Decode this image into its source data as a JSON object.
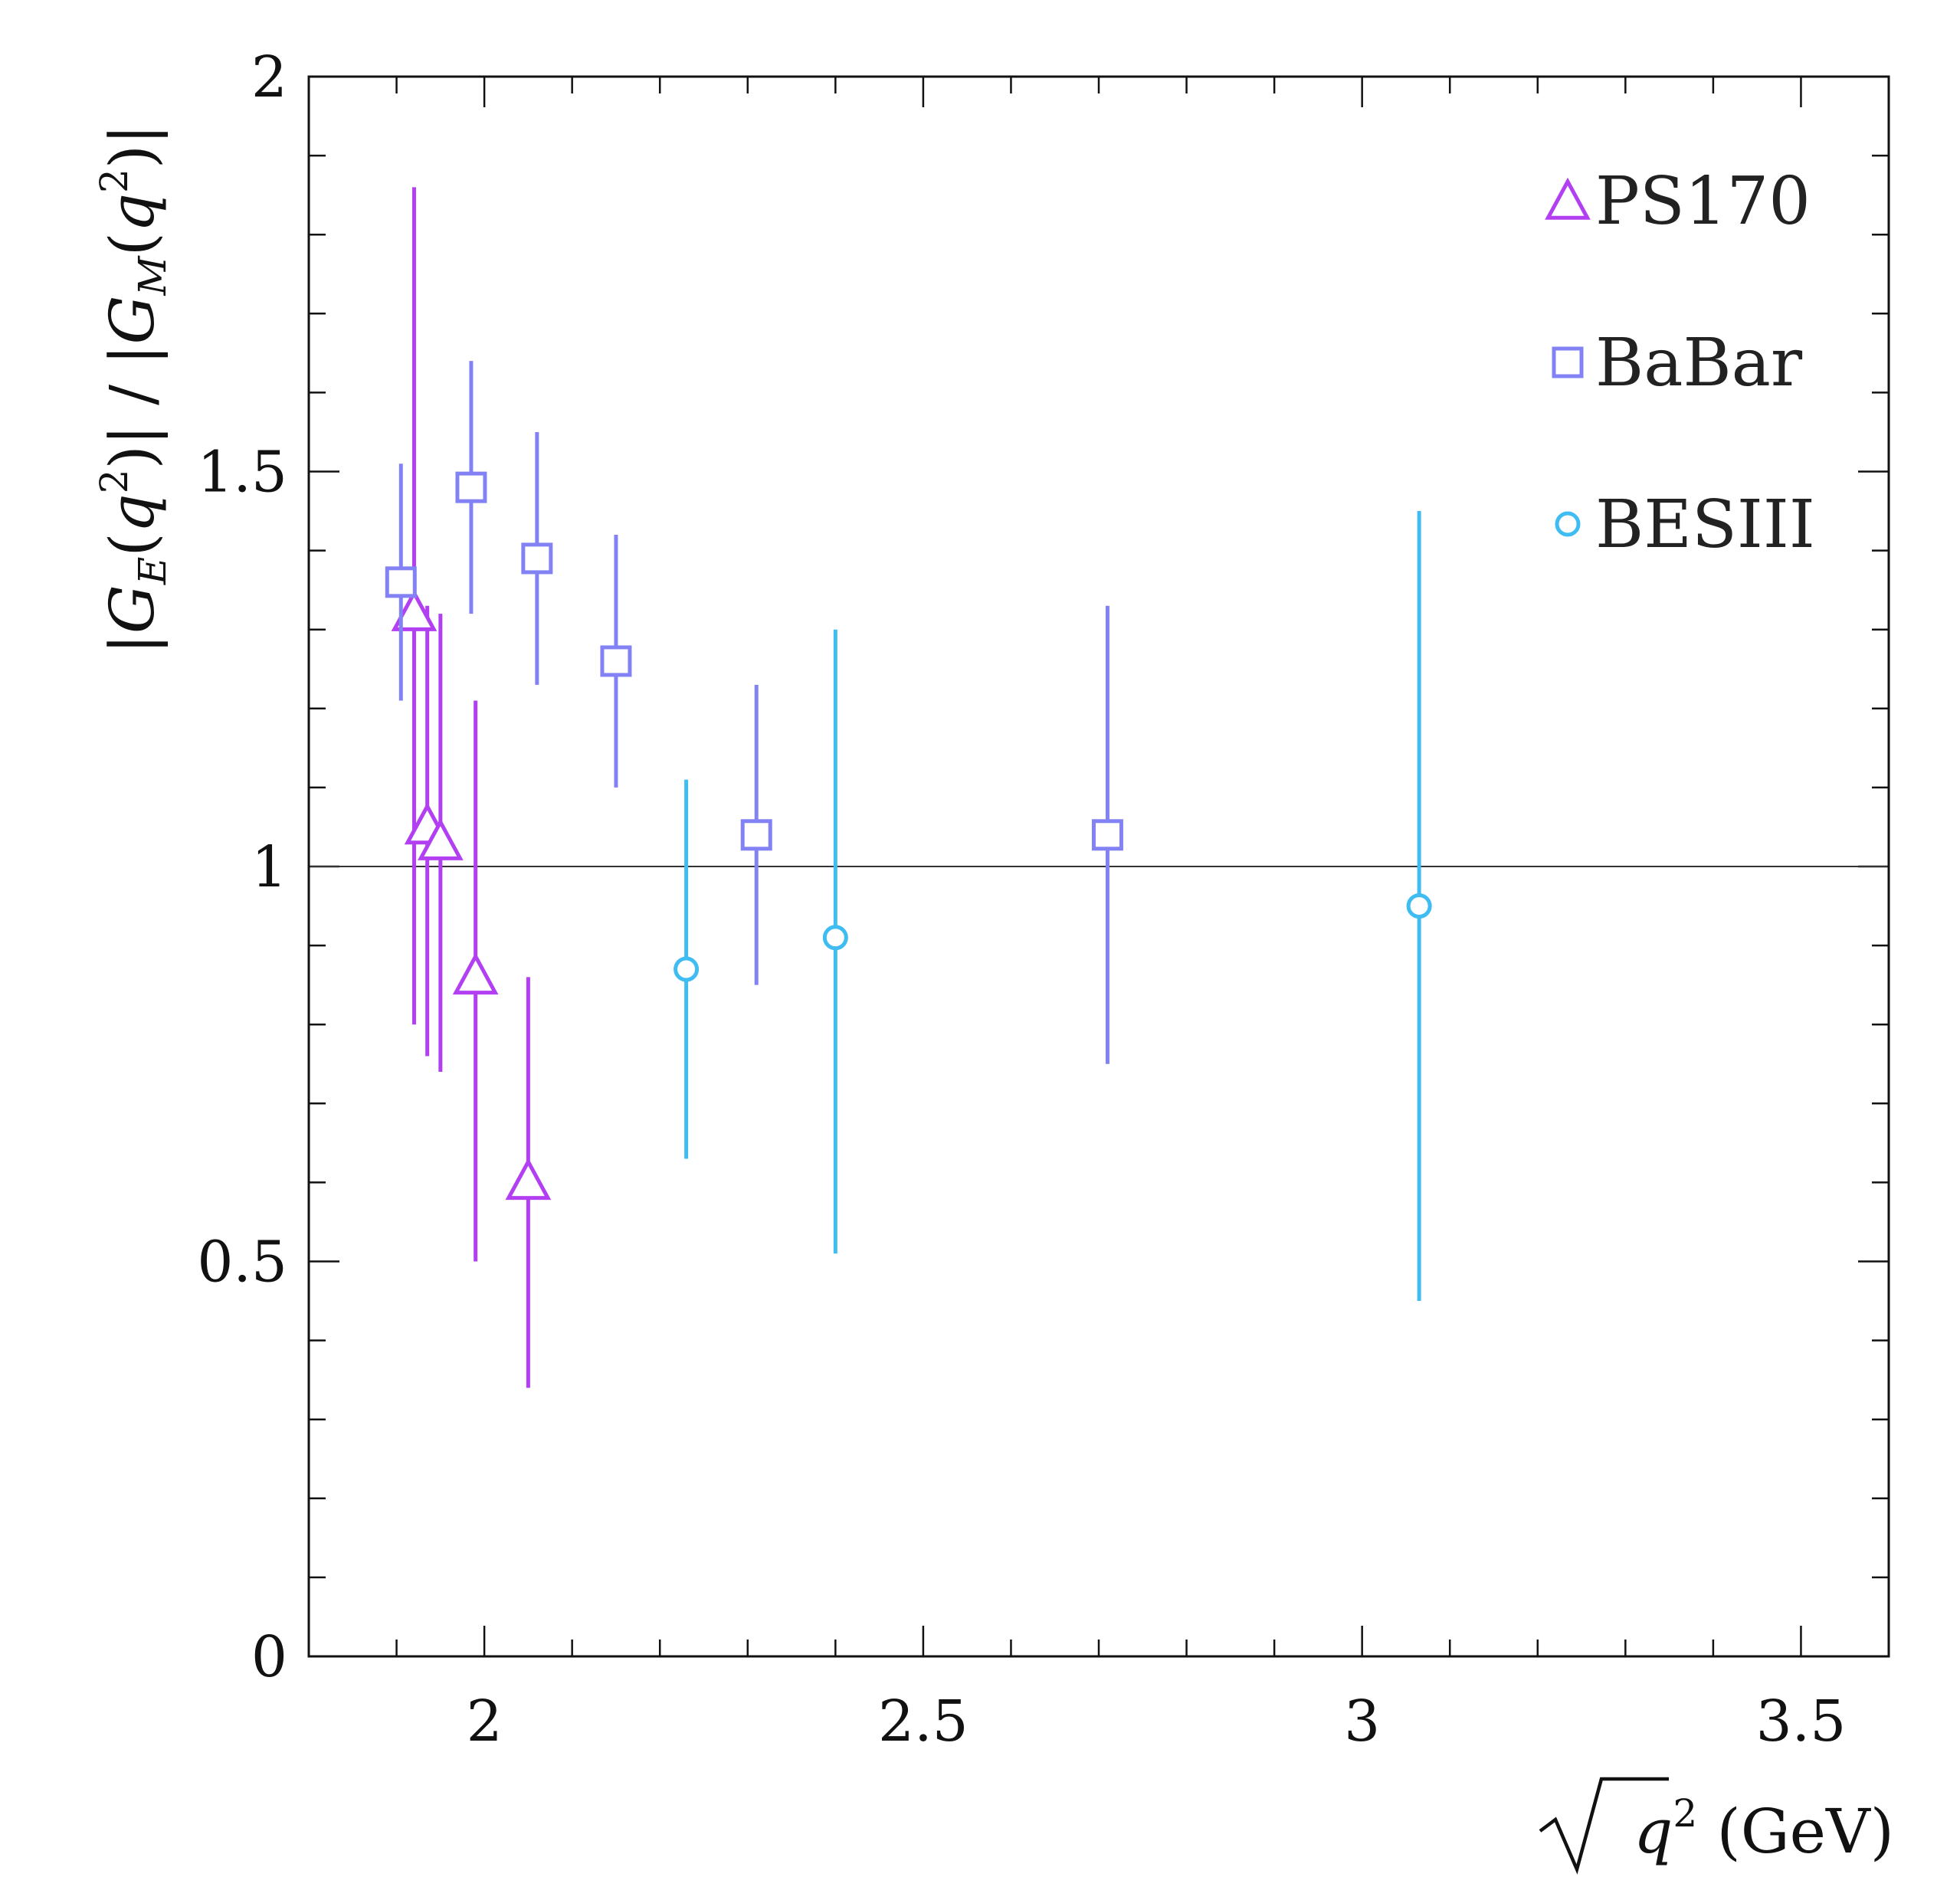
{
  "chart_data": {
    "type": "scatter",
    "title": "",
    "xlabel": "√q² (GeV)",
    "ylabel": "|G_E(q²)| / |G_M(q²)|",
    "xlim": [
      1.8,
      3.6
    ],
    "ylim": [
      0,
      2
    ],
    "x_ticks": [
      2,
      2.5,
      3,
      3.5
    ],
    "x_tick_labels": [
      "2",
      "2.5",
      "3",
      "3.5"
    ],
    "y_ticks": [
      0,
      0.5,
      1,
      1.5,
      2
    ],
    "y_tick_labels": [
      "0",
      "0.5",
      "1",
      "1.5",
      "2"
    ],
    "reference_line_y": 1,
    "legend_position": "top-right",
    "series": [
      {
        "name": "PS170",
        "marker": "triangle",
        "color": "#b23ff2",
        "points": [
          {
            "x": 1.92,
            "y": 1.32,
            "err_low": 0.52,
            "err_high": 0.54
          },
          {
            "x": 1.935,
            "y": 1.05,
            "err_low": 0.29,
            "err_high": 0.28
          },
          {
            "x": 1.95,
            "y": 1.03,
            "err_low": 0.29,
            "err_high": 0.29
          },
          {
            "x": 1.99,
            "y": 0.86,
            "err_low": 0.36,
            "err_high": 0.35
          },
          {
            "x": 2.05,
            "y": 0.6,
            "err_low": 0.26,
            "err_high": 0.26
          }
        ]
      },
      {
        "name": "BaBar",
        "marker": "square",
        "color": "#8282f5",
        "points": [
          {
            "x": 1.905,
            "y": 1.36,
            "err_low": 0.15,
            "err_high": 0.15
          },
          {
            "x": 1.985,
            "y": 1.48,
            "err_low": 0.16,
            "err_high": 0.16
          },
          {
            "x": 2.06,
            "y": 1.39,
            "err_low": 0.16,
            "err_high": 0.16
          },
          {
            "x": 2.15,
            "y": 1.26,
            "err_low": 0.16,
            "err_high": 0.16
          },
          {
            "x": 2.31,
            "y": 1.04,
            "err_low": 0.19,
            "err_high": 0.19
          },
          {
            "x": 2.71,
            "y": 1.04,
            "err_low": 0.29,
            "err_high": 0.29
          }
        ]
      },
      {
        "name": "BESIII",
        "marker": "circle",
        "color": "#3fbdf2",
        "points": [
          {
            "x": 2.23,
            "y": 0.87,
            "err_low": 0.24,
            "err_high": 0.24
          },
          {
            "x": 2.4,
            "y": 0.91,
            "err_low": 0.4,
            "err_high": 0.39
          },
          {
            "x": 3.065,
            "y": 0.95,
            "err_low": 0.5,
            "err_high": 0.5
          }
        ]
      }
    ]
  }
}
